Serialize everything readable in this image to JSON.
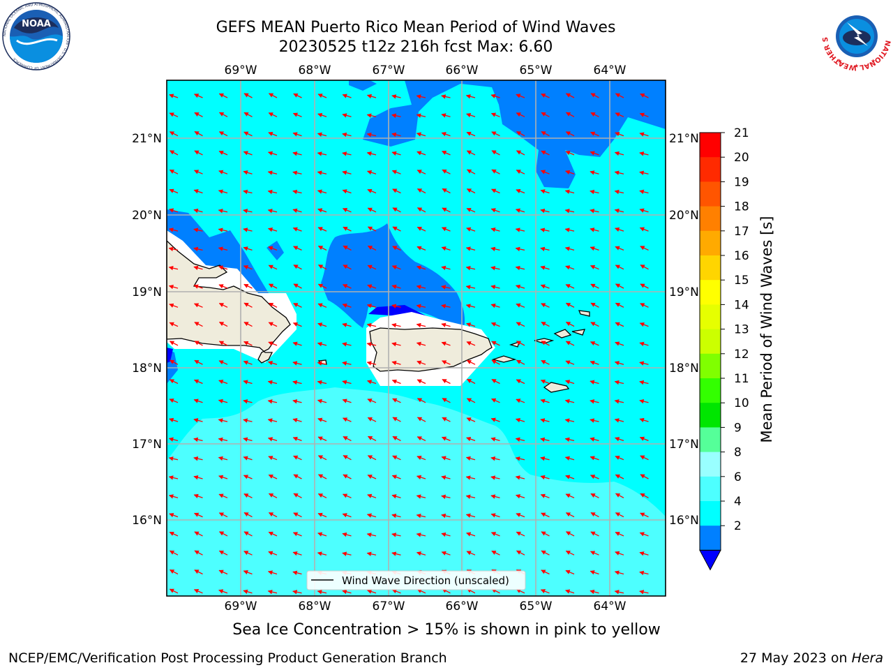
{
  "header": {
    "title_line1": "GEFS MEAN Puerto Rico Mean Period of Wind Waves",
    "title_line2": "20230525 t12z 216h fcst   Max: 6.60"
  },
  "logos": {
    "noaa_text": "NOAA",
    "noaa_ring_text": "NATIONAL OCEANIC AND ATMOSPHERIC ADMINISTRATION · U.S. DEPARTMENT OF COMMERCE",
    "nws_ring_text": "NATIONAL WEATHER SERVICE"
  },
  "map": {
    "lon_labels": [
      "69°W",
      "68°W",
      "67°W",
      "66°W",
      "65°W",
      "64°W"
    ],
    "lat_labels": [
      "21°N",
      "20°N",
      "19°N",
      "18°N",
      "17°N",
      "16°N"
    ],
    "legend_label": "Wind Wave Direction (unscaled)",
    "arrow_color": "#ff0000",
    "land_color": "#efecdc",
    "grid_color": "#b0b0b0"
  },
  "colorbar": {
    "label": "Mean Period of Wind Waves [s]",
    "ticks": [
      "21",
      "20",
      "19",
      "18",
      "17",
      "16",
      "15",
      "14",
      "13",
      "12",
      "11",
      "10",
      "9",
      "8",
      "6",
      "4",
      "2"
    ],
    "colors_top_to_bottom": [
      "#ff0000",
      "#ff2a00",
      "#ff5500",
      "#ff8000",
      "#ffaa00",
      "#ffd500",
      "#ffff00",
      "#e6ff00",
      "#ccff00",
      "#80ff00",
      "#33ff00",
      "#00e600",
      "#55ff99",
      "#99ffff",
      "#4dffff",
      "#00ffff",
      "#0080ff"
    ],
    "under_color": "#0000ff"
  },
  "footer": {
    "note": "Sea Ice Concentration > 15% is shown in pink to yellow",
    "left": "NCEP/EMC/Verification Post Processing Product Generation Branch",
    "right_date": "27 May 2023 on ",
    "right_host": "Hera"
  }
}
